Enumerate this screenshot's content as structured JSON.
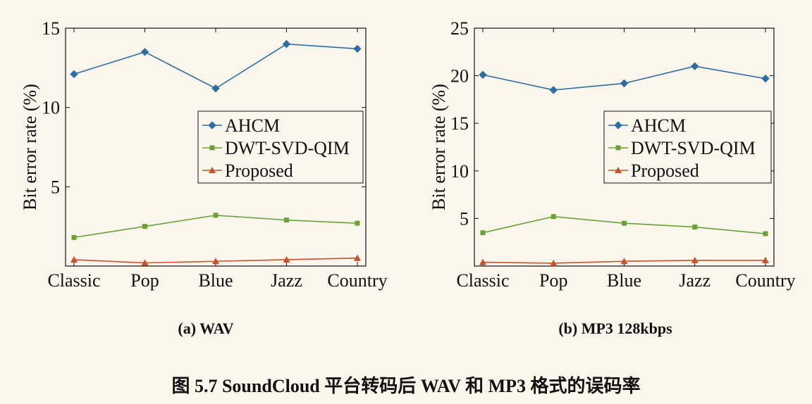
{
  "caption": "图 5.7 SoundCloud 平台转码后 WAV 和 MP3 格式的误码率",
  "colors": {
    "AHCM": "#2e6da4",
    "DWT-SVD-QIM": "#6aa23a",
    "Proposed": "#c8502a"
  },
  "chart_data": [
    {
      "type": "line",
      "subcaption": "(a) WAV",
      "categories": [
        "Classic",
        "Pop",
        "Blue",
        "Jazz",
        "Country"
      ],
      "ylabel": "Bit error rate (%)",
      "ylim": [
        0,
        15
      ],
      "yticks": [
        5,
        10,
        15
      ],
      "legend_position": "center-right",
      "grid": false,
      "series": [
        {
          "name": "AHCM",
          "marker": "diamond",
          "values": [
            12.1,
            13.5,
            11.2,
            14.0,
            13.7
          ]
        },
        {
          "name": "DWT-SVD-QIM",
          "marker": "square",
          "values": [
            1.8,
            2.5,
            3.2,
            2.9,
            2.7
          ]
        },
        {
          "name": "Proposed",
          "marker": "triangle",
          "values": [
            0.4,
            0.2,
            0.3,
            0.4,
            0.5
          ]
        }
      ]
    },
    {
      "type": "line",
      "subcaption": "(b) MP3 128kbps",
      "categories": [
        "Classic",
        "Pop",
        "Blue",
        "Jazz",
        "Country"
      ],
      "ylabel": "Bit error rate (%)",
      "ylim": [
        0,
        25
      ],
      "yticks": [
        5,
        10,
        15,
        20,
        25
      ],
      "legend_position": "center-right",
      "grid": false,
      "series": [
        {
          "name": "AHCM",
          "marker": "diamond",
          "values": [
            20.1,
            18.5,
            19.2,
            21.0,
            19.7
          ]
        },
        {
          "name": "DWT-SVD-QIM",
          "marker": "square",
          "values": [
            3.5,
            5.2,
            4.5,
            4.1,
            3.4
          ]
        },
        {
          "name": "Proposed",
          "marker": "triangle",
          "values": [
            0.4,
            0.3,
            0.5,
            0.6,
            0.6
          ]
        }
      ]
    }
  ]
}
